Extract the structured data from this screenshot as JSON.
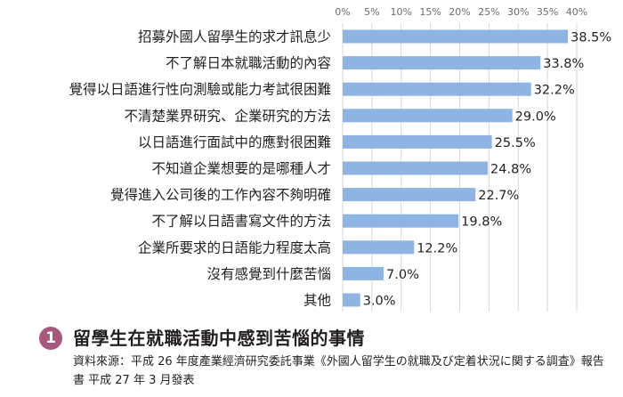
{
  "chart_data": {
    "type": "bar",
    "orientation": "horizontal",
    "categories": [
      "招募外國人留學生的求才訊息少",
      "不了解日本就職活動的內容",
      "覺得以日語進行性向測驗或能力考試很困難",
      "不清楚業界研究、企業研究的方法",
      "以日語進行面試中的應對很困難",
      "不知道企業想要的是哪種人才",
      "覺得進入公司後的工作內容不夠明確",
      "不了解以日語書寫文件的方法",
      "企業所要求的日語能力程度太高",
      "沒有感覺到什麼苦惱",
      "其他"
    ],
    "values": [
      38.5,
      33.8,
      32.2,
      29.0,
      25.5,
      24.8,
      22.7,
      19.8,
      12.2,
      7.0,
      3.0
    ],
    "value_labels": [
      "38.5%",
      "33.8%",
      "32.2%",
      "29.0%",
      "25.5%",
      "24.8%",
      "22.7%",
      "19.8%",
      "12.2%",
      "7.0%",
      "3.0%"
    ],
    "xlim": [
      0,
      40
    ],
    "ticks": [
      0,
      5,
      10,
      15,
      20,
      25,
      30,
      35,
      40
    ],
    "tick_labels": [
      "0%",
      "5%",
      "10%",
      "15%",
      "20%",
      "25%",
      "30%",
      "35%",
      "40%"
    ],
    "bar_color": "#8db4e2",
    "grid": true,
    "title": "",
    "xlabel": "",
    "ylabel": ""
  },
  "caption": {
    "number": "1",
    "badge_color": "#a8587f",
    "title": "留學生在就職活動中感到苦惱的事情",
    "source": "資料來源：平成 26 年度產業經濟研究委託事業《外國人留学生の就職及び定着状況に関する調査》報告書 平成 27 年 3 月發表"
  }
}
